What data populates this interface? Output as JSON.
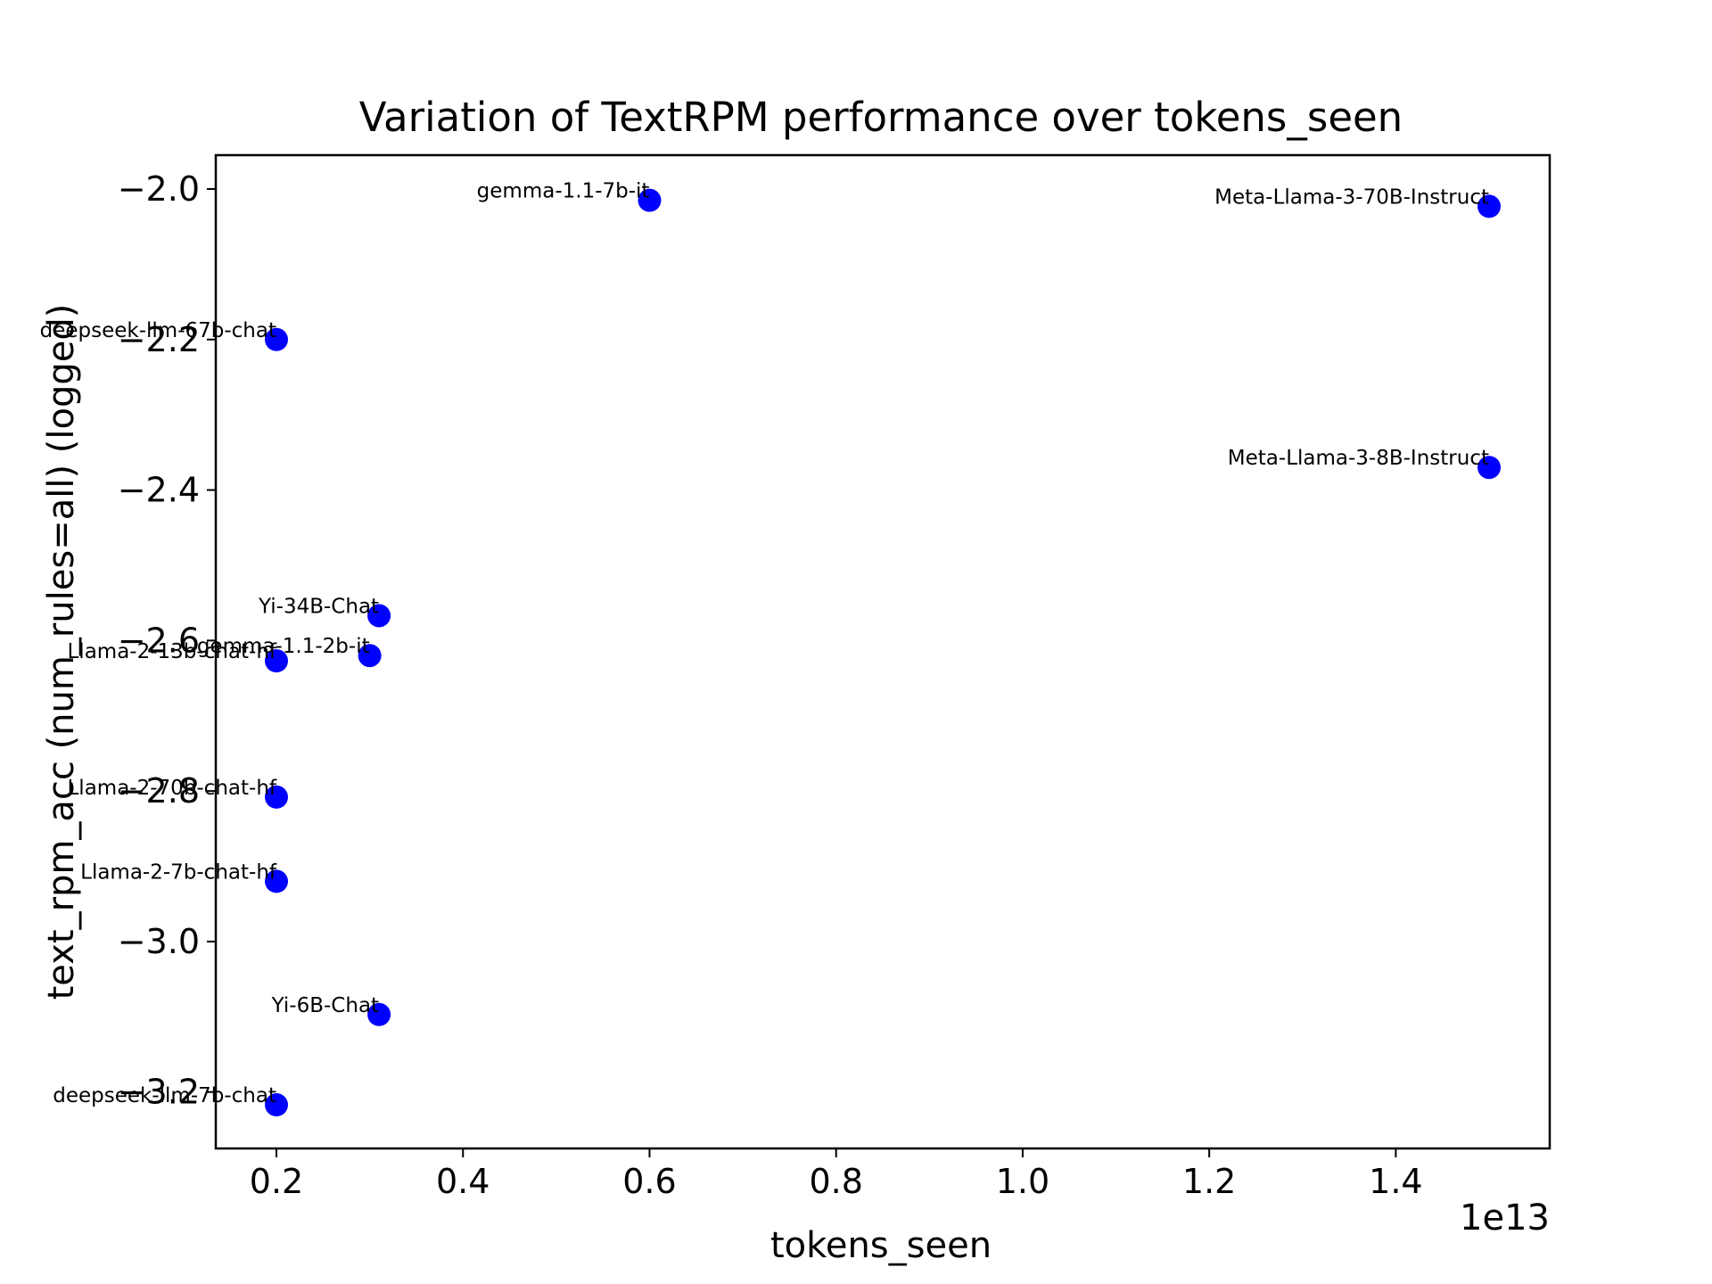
{
  "chart_data": {
    "type": "scatter",
    "title": "Variation of TextRPM performance over tokens_seen",
    "xlabel": "tokens_seen",
    "ylabel": "text_rpm_acc (num_rules=all) (logged)",
    "x_offset_label": "1e13",
    "xlim": [
      0.135,
      1.565
    ],
    "ylim": [
      -3.275,
      -1.955
    ],
    "x_ticks": [
      0.2,
      0.4,
      0.6,
      0.8,
      1.0,
      1.2,
      1.4
    ],
    "x_tick_labels": [
      "0.2",
      "0.4",
      "0.6",
      "0.8",
      "1.0",
      "1.2",
      "1.4"
    ],
    "y_ticks": [
      -2.0,
      -2.2,
      -2.4,
      -2.6,
      -2.8,
      -3.0,
      -3.2
    ],
    "y_tick_labels": [
      "−2.0",
      "−2.2",
      "−2.4",
      "−2.6",
      "−2.8",
      "−3.0",
      "−3.2"
    ],
    "marker_color": "#0000ff",
    "grid": false,
    "points": [
      {
        "label": "gemma-1.1-7b-it",
        "x": 0.6,
        "y": -2.015
      },
      {
        "label": "Meta-Llama-3-70B-Instruct",
        "x": 1.5,
        "y": -2.023
      },
      {
        "label": "deepseek-llm-67b-chat",
        "x": 0.2,
        "y": -2.2
      },
      {
        "label": "Meta-Llama-3-8B-Instruct",
        "x": 1.5,
        "y": -2.37
      },
      {
        "label": "Yi-34B-Chat",
        "x": 0.31,
        "y": -2.567
      },
      {
        "label": "gemma-1.1-2b-it",
        "x": 0.3,
        "y": -2.62
      },
      {
        "label": "Llama-2-13b-chat-hf",
        "x": 0.2,
        "y": -2.627
      },
      {
        "label": "Llama-2-70b-chat-hf",
        "x": 0.2,
        "y": -2.808
      },
      {
        "label": "Llama-2-7b-chat-hf",
        "x": 0.2,
        "y": -2.92
      },
      {
        "label": "Yi-6B-Chat",
        "x": 0.31,
        "y": -3.097
      },
      {
        "label": "deepseek-llm-7b-chat",
        "x": 0.2,
        "y": -3.217
      }
    ]
  }
}
